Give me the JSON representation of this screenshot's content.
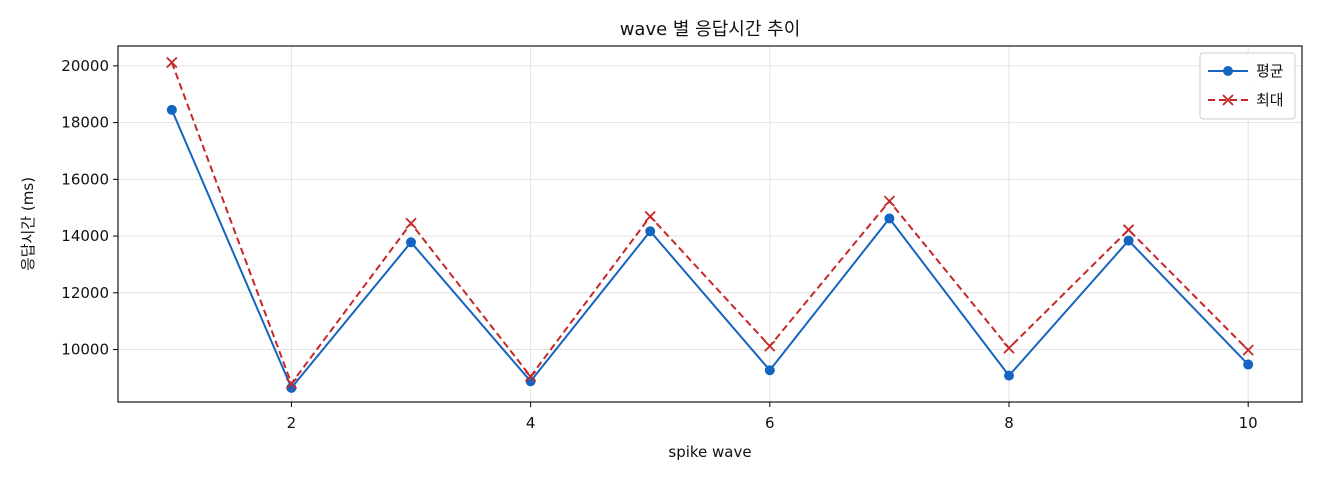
{
  "chart_data": {
    "type": "line",
    "title": "wave 별 응답시간 추이",
    "xlabel": "spike wave",
    "ylabel": "응답시간 (ms)",
    "x": [
      1,
      2,
      3,
      4,
      5,
      6,
      7,
      8,
      9,
      10
    ],
    "xlim": [
      0.55,
      10.45
    ],
    "ylim": [
      8150,
      20700
    ],
    "xticks": [
      2,
      4,
      6,
      8,
      10
    ],
    "yticks": [
      10000,
      12000,
      14000,
      16000,
      18000,
      20000
    ],
    "grid": true,
    "legend_position": "top-right",
    "series": [
      {
        "name": "평균",
        "values": [
          18450,
          8650,
          13780,
          8880,
          14170,
          9270,
          14620,
          9080,
          13840,
          9470
        ],
        "color": "#1565c0",
        "line_style": "solid",
        "marker": "circle"
      },
      {
        "name": "최대",
        "values": [
          20120,
          8800,
          14450,
          9050,
          14690,
          10120,
          15230,
          10050,
          14220,
          9980
        ],
        "color": "#c62828",
        "line_style": "dashed",
        "marker": "x"
      }
    ]
  }
}
